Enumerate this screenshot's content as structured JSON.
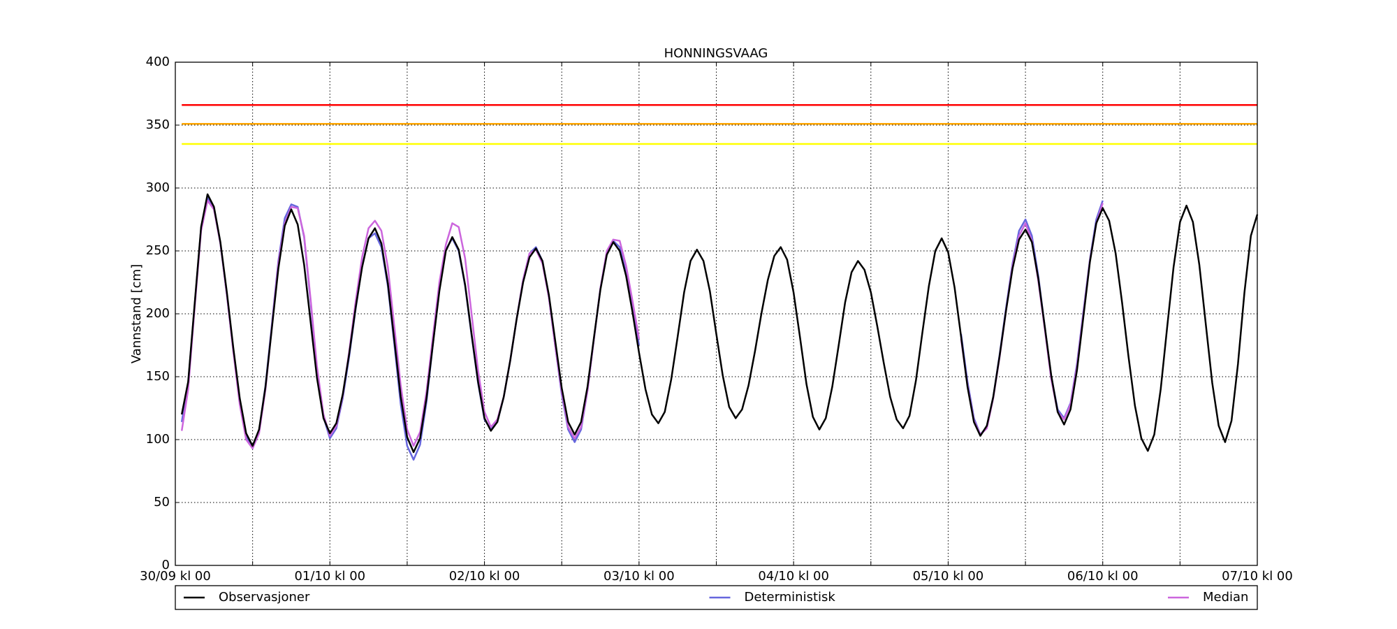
{
  "chart_data": {
    "type": "line",
    "title": "HONNINGSVAAG",
    "y_label": "Vannstand [cm]",
    "xlim": [
      0,
      168
    ],
    "ylim": [
      0,
      400
    ],
    "xticks": [
      {
        "value": 0,
        "label": "30/09 kl 00"
      },
      {
        "value": 12,
        "label": null
      },
      {
        "value": 24,
        "label": "01/10 kl 00"
      },
      {
        "value": 36,
        "label": null
      },
      {
        "value": 48,
        "label": "02/10 kl 00"
      },
      {
        "value": 60,
        "label": null
      },
      {
        "value": 72,
        "label": "03/10 kl 00"
      },
      {
        "value": 84,
        "label": null
      },
      {
        "value": 96,
        "label": "04/10 kl 00"
      },
      {
        "value": 108,
        "label": null
      },
      {
        "value": 120,
        "label": "05/10 kl 00"
      },
      {
        "value": 132,
        "label": null
      },
      {
        "value": 144,
        "label": "06/10 kl 00"
      },
      {
        "value": 156,
        "label": null
      },
      {
        "value": 168,
        "label": "07/10 kl 00"
      }
    ],
    "yticks": [
      0,
      50,
      100,
      150,
      200,
      250,
      300,
      350,
      400
    ],
    "grid": true,
    "legend": "bottom",
    "hlines": [
      {
        "value": 366,
        "color": "#ff0000"
      },
      {
        "value": 351,
        "color": "#ffa500"
      },
      {
        "value": 335,
        "color": "#ffff00"
      }
    ],
    "x": [
      1,
      2,
      3,
      4,
      5,
      6,
      7,
      8,
      9,
      10,
      11,
      12,
      13,
      14,
      15,
      16,
      17,
      18,
      19,
      20,
      21,
      22,
      23,
      24,
      25,
      26,
      27,
      28,
      29,
      30,
      31,
      32,
      33,
      34,
      35,
      36,
      37,
      38,
      39,
      40,
      41,
      42,
      43,
      44,
      45,
      46,
      47,
      48,
      49,
      50,
      51,
      52,
      53,
      54,
      55,
      56,
      57,
      58,
      59,
      60,
      61,
      62,
      63,
      64,
      65,
      66,
      67,
      68,
      69,
      70,
      71,
      72,
      73,
      74,
      75,
      76,
      77,
      78,
      79,
      80,
      81,
      82,
      83,
      84,
      85,
      86,
      87,
      88,
      89,
      90,
      91,
      92,
      93,
      94,
      95,
      96,
      97,
      98,
      99,
      100,
      101,
      102,
      103,
      104,
      105,
      106,
      107,
      108,
      109,
      110,
      111,
      112,
      113,
      114,
      115,
      116,
      117,
      118,
      119,
      120,
      121,
      122,
      123,
      124,
      125,
      126,
      127,
      128,
      129,
      130,
      131,
      132,
      133,
      134,
      135,
      136,
      137,
      138,
      139,
      140,
      141,
      142,
      143,
      144,
      145,
      146,
      147,
      148,
      149,
      150,
      151,
      152,
      153,
      154,
      155,
      156,
      157,
      158,
      159,
      160,
      161,
      162,
      163,
      164,
      165,
      166,
      167,
      168
    ],
    "series": [
      {
        "name": "Deterministisk",
        "color": "#6666dd",
        "values": [
          114,
          145,
          207,
          268,
          292,
          284,
          256,
          215,
          171,
          130,
          103,
          93,
          107,
          143,
          192,
          242,
          276,
          287,
          285,
          261,
          210,
          155,
          118,
          101,
          109,
          133,
          166,
          204,
          238,
          260,
          264,
          253,
          222,
          176,
          128,
          95,
          84,
          96,
          130,
          176,
          220,
          251,
          260,
          250,
          222,
          183,
          145,
          116,
          108,
          114,
          134,
          163,
          196,
          227,
          248,
          253,
          242,
          213,
          174,
          136,
          108,
          98,
          108,
          139,
          180,
          220,
          249,
          258,
          253,
          232,
          205,
          175,
          null,
          null,
          null,
          null,
          null,
          null,
          null,
          null,
          null,
          null,
          null,
          null,
          null,
          null,
          null,
          null,
          null,
          null,
          null,
          null,
          null,
          null,
          null,
          null,
          null,
          null,
          null,
          null,
          null,
          null,
          null,
          null,
          null,
          null,
          null,
          null,
          null,
          null,
          null,
          null,
          null,
          null,
          null,
          null,
          null,
          null,
          null,
          null,
          null,
          184,
          146,
          117,
          104,
          110,
          134,
          168,
          205,
          240,
          266,
          275,
          262,
          230,
          190,
          150,
          124,
          117,
          129,
          160,
          202,
          243,
          275,
          290,
          null,
          null,
          null,
          null,
          null,
          null,
          null,
          null,
          null,
          null,
          null,
          null,
          null,
          null,
          null,
          null,
          null,
          null,
          null,
          null,
          null,
          null,
          null,
          null
        ]
      },
      {
        "name": "Median",
        "color": "#cc66dd",
        "values": [
          107,
          140,
          205,
          266,
          290,
          283,
          256,
          215,
          170,
          128,
          100,
          93,
          105,
          140,
          190,
          240,
          272,
          285,
          284,
          262,
          212,
          158,
          120,
          103,
          111,
          135,
          170,
          210,
          245,
          268,
          274,
          266,
          237,
          190,
          143,
          108,
          95,
          106,
          138,
          182,
          225,
          255,
          272,
          269,
          244,
          200,
          155,
          122,
          110,
          116,
          134,
          163,
          196,
          227,
          248,
          251,
          240,
          213,
          174,
          138,
          110,
          101,
          110,
          139,
          180,
          220,
          250,
          259,
          258,
          238,
          210,
          180,
          null,
          null,
          null,
          null,
          null,
          null,
          null,
          null,
          null,
          null,
          null,
          null,
          null,
          null,
          null,
          null,
          null,
          null,
          null,
          null,
          null,
          null,
          null,
          null,
          null,
          null,
          null,
          null,
          null,
          null,
          null,
          null,
          null,
          null,
          null,
          null,
          null,
          null,
          null,
          null,
          null,
          null,
          null,
          null,
          null,
          null,
          null,
          null,
          null,
          180,
          143,
          115,
          104,
          109,
          133,
          166,
          203,
          238,
          262,
          272,
          258,
          226,
          188,
          148,
          122,
          116,
          128,
          158,
          200,
          242,
          272,
          288,
          null,
          null,
          null,
          null,
          null,
          null,
          null,
          null,
          null,
          null,
          null,
          null,
          null,
          null,
          null,
          null,
          null,
          null,
          null,
          null,
          null,
          null,
          null,
          null
        ]
      },
      {
        "name": "Observasjoner",
        "color": "#000000",
        "values": [
          120,
          146,
          208,
          269,
          295,
          285,
          257,
          217,
          173,
          133,
          105,
          95,
          108,
          142,
          189,
          236,
          270,
          283,
          271,
          239,
          194,
          149,
          117,
          105,
          113,
          136,
          168,
          205,
          237,
          260,
          268,
          256,
          224,
          179,
          134,
          102,
          90,
          101,
          133,
          176,
          218,
          250,
          261,
          251,
          223,
          184,
          146,
          117,
          107,
          114,
          134,
          163,
          196,
          225,
          245,
          252,
          242,
          215,
          178,
          141,
          114,
          104,
          114,
          142,
          181,
          219,
          247,
          257,
          250,
          230,
          201,
          169,
          140,
          120,
          113,
          122,
          148,
          182,
          217,
          242,
          251,
          242,
          218,
          184,
          151,
          126,
          117,
          124,
          143,
          170,
          200,
          227,
          246,
          253,
          243,
          217,
          181,
          144,
          118,
          108,
          117,
          142,
          175,
          209,
          233,
          242,
          235,
          217,
          190,
          161,
          134,
          116,
          109,
          119,
          147,
          185,
          222,
          250,
          260,
          249,
          221,
          182,
          142,
          114,
          103,
          111,
          134,
          167,
          203,
          236,
          259,
          267,
          257,
          228,
          190,
          151,
          122,
          112,
          124,
          155,
          198,
          241,
          272,
          284,
          274,
          248,
          209,
          166,
          127,
          101,
          91,
          104,
          140,
          189,
          237,
          273,
          286,
          273,
          239,
          192,
          145,
          111,
          98,
          115,
          160,
          217,
          262,
          279
        ]
      }
    ]
  }
}
